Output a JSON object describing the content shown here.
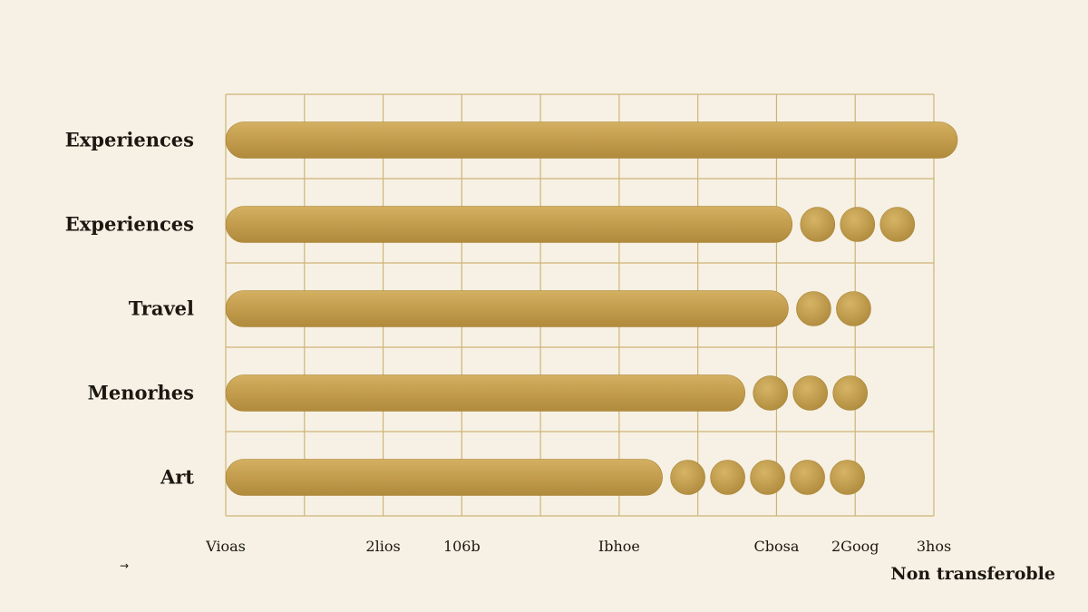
{
  "chart_data": {
    "type": "bar",
    "orientation": "horizontal",
    "categories": [
      "Experiences",
      "Experiences",
      "Travel",
      "Menorhes",
      "Art"
    ],
    "values": [
      9.3,
      7.2,
      7.15,
      6.6,
      5.55
    ],
    "dots": [
      0,
      3,
      2,
      3,
      5
    ],
    "xlim": [
      0,
      9
    ],
    "x_tick_labels": [
      {
        "label": "Vioas",
        "value": 0
      },
      {
        "label": "2lios",
        "value": 2
      },
      {
        "label": "106b",
        "value": 3
      },
      {
        "label": "Ibhoe",
        "value": 5
      },
      {
        "label": "Cbosa",
        "value": 7
      },
      {
        "label": "2Goog",
        "value": 8
      },
      {
        "label": "3hos",
        "value": 9
      }
    ],
    "xlabel": "Non transferoble",
    "grid": true,
    "colors": {
      "bar": "#c9a253",
      "bar_dark": "#a7802f",
      "grid": "#cfb478",
      "background": "#f6f1e4",
      "text": "#1c1710"
    }
  },
  "annotations": {
    "arrow": "→"
  }
}
